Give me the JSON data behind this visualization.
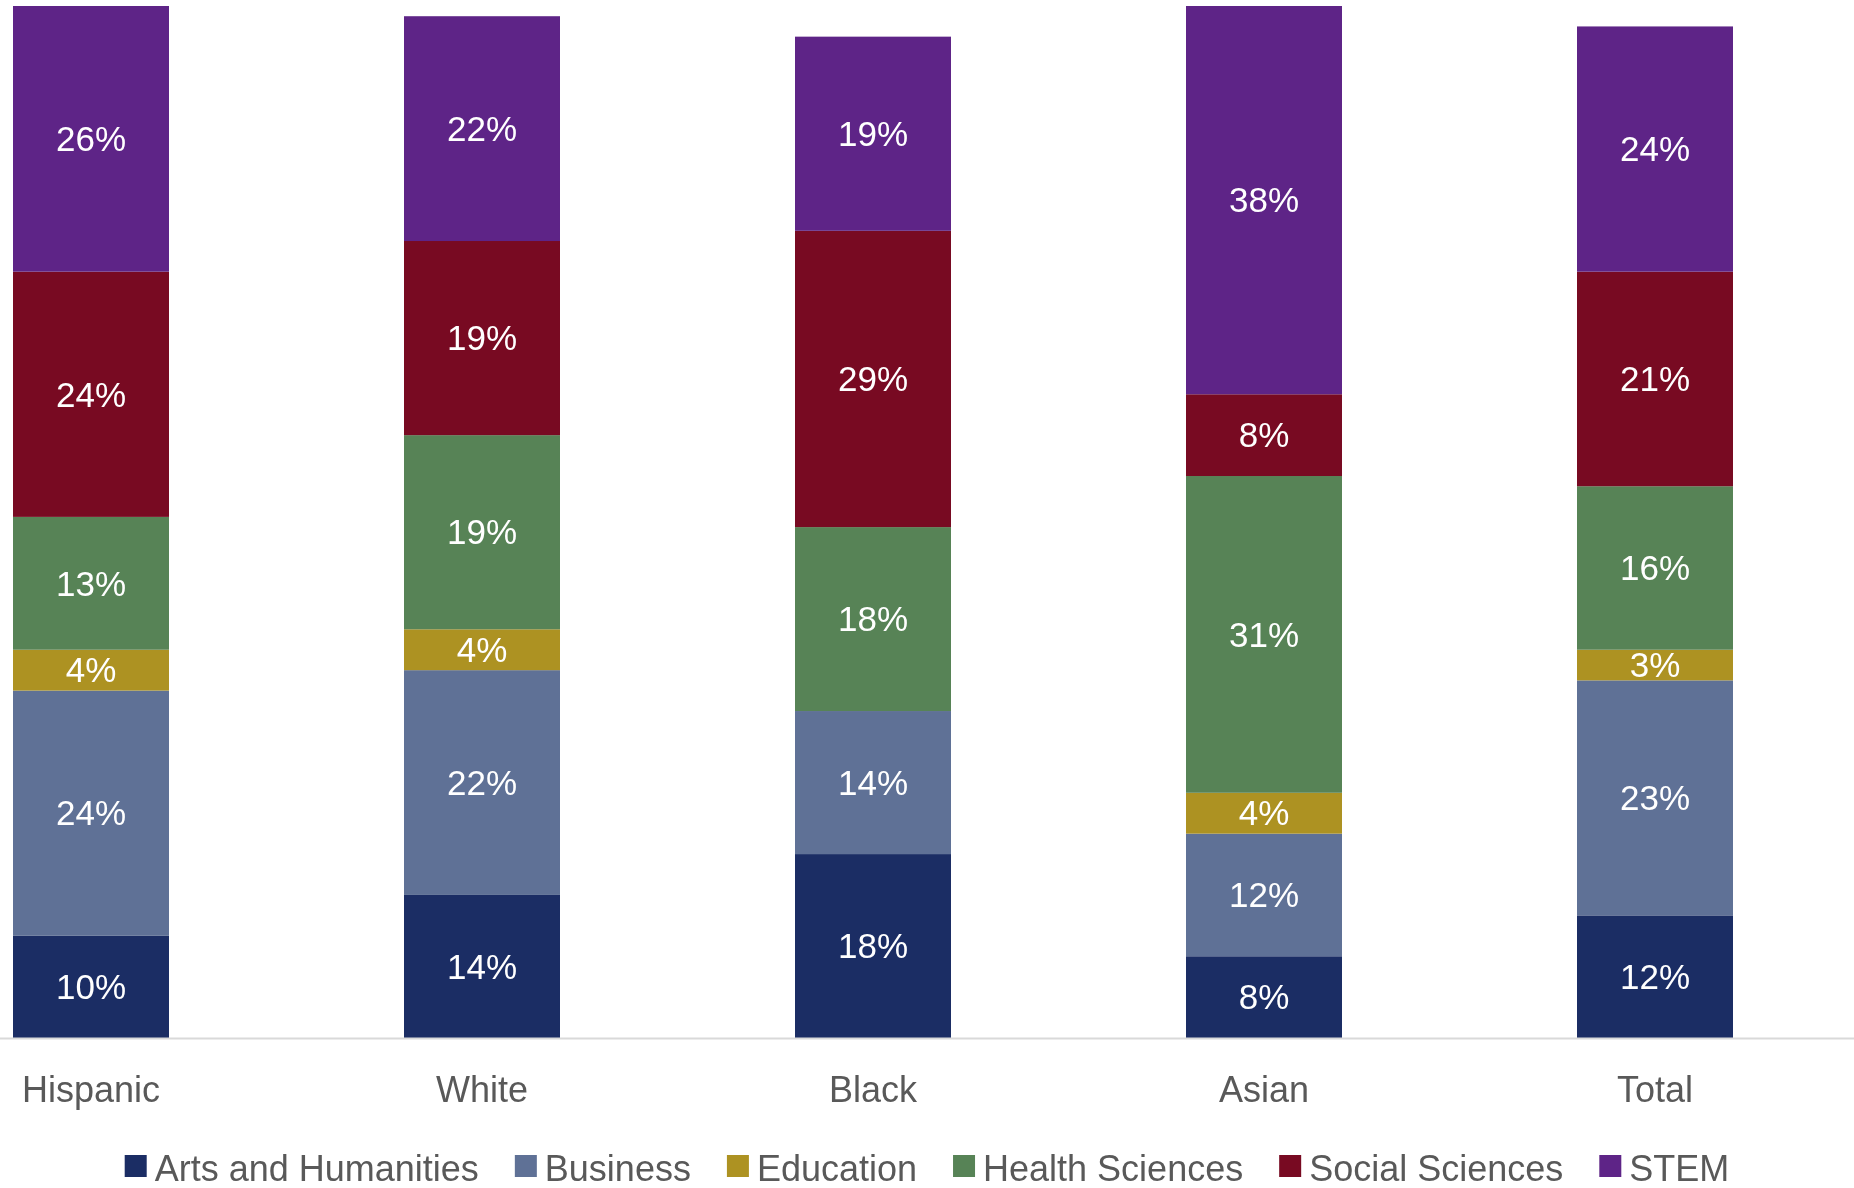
{
  "chart_data": {
    "type": "bar",
    "stacked": true,
    "categories": [
      "Hispanic",
      "White",
      "Black",
      "Asian",
      "Total"
    ],
    "legend": "bottom",
    "series": [
      {
        "name": "Arts and Humanities",
        "color": "#1b2d64",
        "values": [
          10,
          14,
          18,
          8,
          12
        ],
        "value_labels": [
          "10%",
          "14%",
          "18%",
          "8%",
          "12%"
        ]
      },
      {
        "name": "Business",
        "color": "#5f7196",
        "values": [
          24,
          22,
          14,
          12,
          23
        ],
        "value_labels": [
          "24%",
          "22%",
          "14%",
          "12%",
          "23%"
        ]
      },
      {
        "name": "Education",
        "color": "#ad9222",
        "values": [
          4,
          4,
          null,
          4,
          3
        ],
        "value_labels": [
          "4%",
          "4%",
          null,
          "4%",
          "3%"
        ]
      },
      {
        "name": "Health Sciences",
        "color": "#578356",
        "values": [
          13,
          19,
          18,
          31,
          16
        ],
        "value_labels": [
          "13%",
          "19%",
          "18%",
          "31%",
          "16%"
        ]
      },
      {
        "name": "Social Sciences",
        "color": "#780a22",
        "values": [
          24,
          19,
          29,
          8,
          21
        ],
        "value_labels": [
          "24%",
          "19%",
          "29%",
          "8%",
          "21%"
        ]
      },
      {
        "name": "STEM",
        "color": "#5e2487",
        "values": [
          26,
          22,
          19,
          38,
          24
        ],
        "value_labels": [
          "26%",
          "22%",
          "19%",
          "38%",
          "24%"
        ]
      }
    ]
  }
}
